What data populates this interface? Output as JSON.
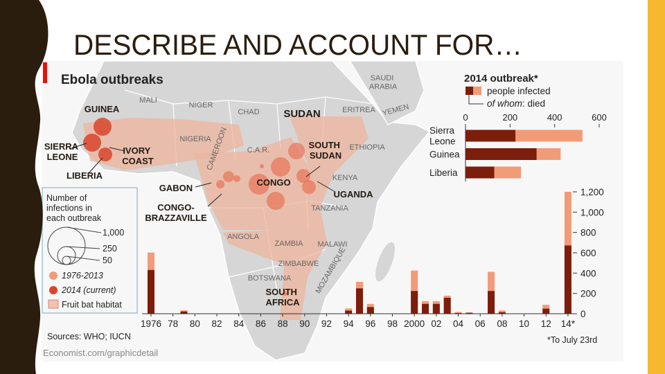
{
  "slide_title": "DESCRIBE AND ACCOUNT FOR…",
  "infographic": {
    "title": "Ebola outbreaks",
    "sources": "Sources: WHO; IUCN",
    "url": "Economist.com/graphicdetail",
    "footnote": "*To July 23rd"
  },
  "map": {
    "outbreak_labels": [
      "GUINEA",
      "SIERRA LEONE",
      "LIBERIA",
      "IVORY COAST",
      "GABON",
      "CONGO-BRAZZAVILLE",
      "CONGO",
      "SOUTH SUDAN",
      "UGANDA",
      "SUDAN",
      "SOUTH AFRICA"
    ],
    "country_labels": [
      "MALI",
      "NIGER",
      "CHAD",
      "NIGERIA",
      "CAMEROON",
      "C.A.R.",
      "ERITREA",
      "YEMEN",
      "SAUDI ARABIA",
      "ETHIOPIA",
      "KENYA",
      "TANZANIA",
      "ANGOLA",
      "ZAMBIA",
      "MALAWI",
      "MOZAMBIQUE",
      "ZIMBABWE",
      "BOTSWANA"
    ]
  },
  "legend": {
    "title": "Number of infections in each outbreak",
    "sizes": [
      "1,000",
      "250",
      "50"
    ],
    "items": [
      "1976-2013",
      "2014 (current)",
      "Fruit bat habitat"
    ]
  },
  "chart_data": [
    {
      "type": "hbar",
      "title": "2014 outbreak*",
      "categories": [
        "Sierra Leone",
        "Guinea",
        "Liberia"
      ],
      "series": [
        {
          "name": "people infected",
          "color": "#f29b78",
          "values": [
            525,
            427,
            249
          ]
        },
        {
          "name": "of whom: died",
          "color": "#7d1d0c",
          "values": [
            224,
            319,
            129
          ]
        }
      ],
      "xlim": [
        0,
        600
      ],
      "xticks": [
        0,
        200,
        400,
        600
      ]
    },
    {
      "type": "bar",
      "categories": [
        "1976",
        null,
        "78",
        null,
        "80",
        null,
        "82",
        null,
        "84",
        null,
        "86",
        null,
        "88",
        null,
        "90",
        null,
        "92",
        null,
        "94",
        null,
        "96",
        null,
        "98",
        null,
        "2000",
        null,
        "02",
        null,
        "04",
        null,
        "06",
        null,
        "08",
        null,
        "10",
        null,
        "12",
        null,
        "14*"
      ],
      "series": [
        {
          "color": "#f29b78",
          "values": [
            602,
            null,
            null,
            34,
            null,
            null,
            null,
            null,
            null,
            null,
            null,
            null,
            null,
            null,
            null,
            null,
            null,
            null,
            52,
            315,
            97,
            null,
            null,
            null,
            425,
            124,
            124,
            178,
            17,
            12,
            null,
            413,
            32,
            null,
            null,
            null,
            88,
            null,
            1201
          ]
        },
        {
          "color": "#7d1d0c",
          "values": [
            431,
            null,
            null,
            22,
            null,
            null,
            null,
            null,
            null,
            null,
            null,
            null,
            null,
            null,
            null,
            null,
            null,
            null,
            31,
            250,
            66,
            null,
            null,
            null,
            224,
            97,
            97,
            157,
            7,
            10,
            null,
            224,
            15,
            null,
            null,
            null,
            50,
            null,
            672
          ]
        }
      ],
      "ylim": [
        0,
        1200
      ],
      "yticks": [
        0,
        200,
        400,
        600,
        800,
        {
          "value": 1000,
          "label": "1,000"
        },
        {
          "value": 1200,
          "label": "1,200"
        }
      ]
    }
  ]
}
